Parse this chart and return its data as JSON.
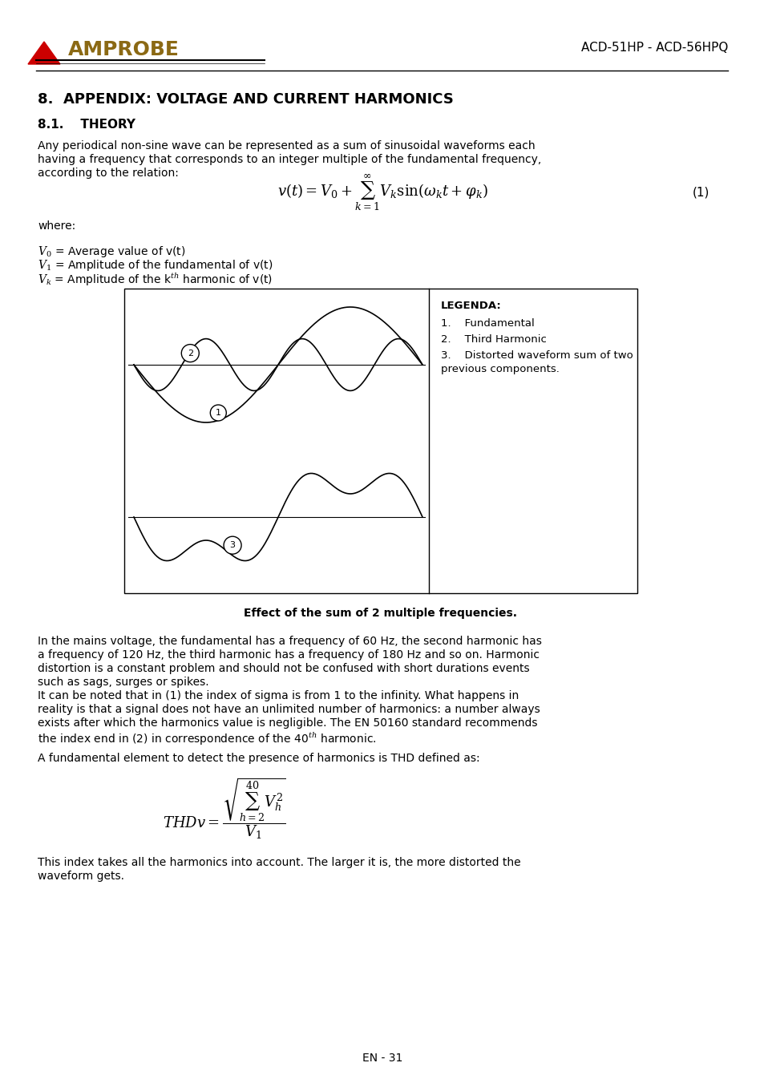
{
  "title": "8.  APPENDIX: VOLTAGE AND CURRENT HARMONICS",
  "subtitle": "8.1.    THEORY",
  "body_text_1": "Any periodical non-sine wave can be represented as a sum of sinusoidal waveforms each\nhaving a frequency that corresponds to an integer multiple of the fundamental frequency,\naccording to the relation:",
  "equation_1": "$v(t) = V_0 + \\sum_{k=1}^{\\infty} V_k \\sin(\\omega_k t + \\varphi_k)$",
  "eq1_number": "(1)",
  "where_text": "where:",
  "v0_line": "$V_0$ = Average value of v(t)",
  "v1_line": "$V_1$ = Amplitude of the fundamental of v(t)",
  "vk_line": "$V_k$ = Amplitude of the k$^{th}$ harmonic of v(t)",
  "legenda_title": "LEGENDA:",
  "legenda_1": "1.    Fundamental",
  "legenda_2": "2.    Third Harmonic",
  "legenda_3": "3.    Distorted waveform sum of two\n       previous components.",
  "fig_caption": "Effect of the sum of 2 multiple frequencies.",
  "body_text_2": "In the mains voltage, the fundamental has a frequency of 60 Hz, the second harmonic has\na frequency of 120 Hz, the third harmonic has a frequency of 180 Hz and so on. Harmonic\ndistortion is a constant problem and should not be confused with short durations events\nsuch as sags, surges or spikes.\nIt can be noted that in (1) the index of sigma is from 1 to the infinity. What happens in\nreality is that a signal does not have an unlimited number of harmonics: a number always\nexists after which the harmonics value is negligible. The EN 50160 standard recommends\nthe index end in (2) in correspondence of the 40$^{th}$ harmonic.",
  "body_text_3": "A fundamental element to detect the presence of harmonics is THD defined as:",
  "equation_2": "$THDv = \\dfrac{\\sqrt{\\sum_{h=2}^{40} V_h^2}}{V_1}$",
  "body_text_4": "This index takes all the harmonics into account. The larger it is, the more distorted the\nwaveform gets.",
  "page_number": "EN - 31",
  "header_model": "ACD-51HP - ACD-56HPQ",
  "bg_color": "#ffffff",
  "text_color": "#000000",
  "logo_triangle_color": "#cc0000",
  "logo_text_color": "#8B6914"
}
